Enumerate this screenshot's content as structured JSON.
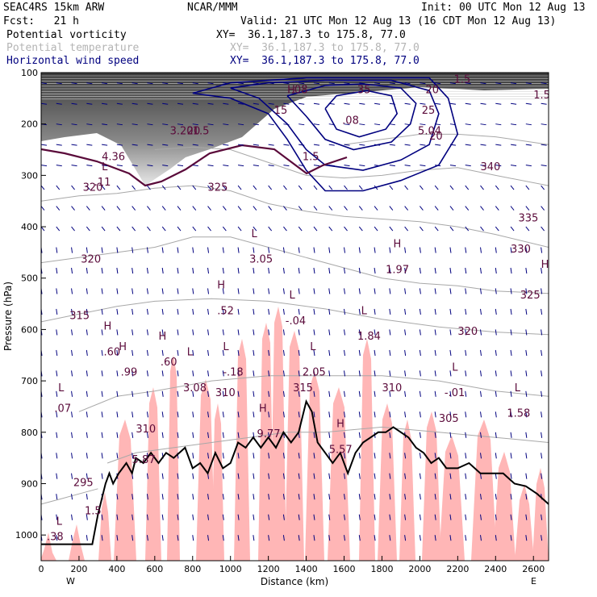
{
  "header": {
    "model": "SEAC4RS 15km ARW",
    "fcst": "Fcst:   21 h",
    "center": "NCAR/MMM",
    "init": "Init: 00 UTC Mon 12 Aug 13",
    "valid": "Valid: 21 UTC Mon 12 Aug 13 (16 CDT Mon 12 Aug 13)",
    "fields": [
      {
        "name": "Potential vorticity",
        "xy": "XY=  36.1,187.3 to 175.8, 77.0",
        "color": "#000000"
      },
      {
        "name": "Potential temperature",
        "xy": "XY=  36.1,187.3 to 175.8, 77.0",
        "color": "#b4b4b4"
      },
      {
        "name": "Horizontal wind speed",
        "xy": "XY=  36.1,187.3 to 175.8, 77.0",
        "color": "#00007f"
      }
    ]
  },
  "chart_data": {
    "type": "cross-section",
    "xlabel": "Distance (km)",
    "ylabel": "Pressure (hPa)",
    "xlim": [
      0,
      2680
    ],
    "ylim": [
      1050,
      100
    ],
    "x_ticks": [
      "0",
      "200",
      "400",
      "600",
      "800",
      "1000",
      "1200",
      "1400",
      "1600",
      "1800",
      "2000",
      "2200",
      "2400",
      "2600"
    ],
    "y_ticks": [
      "100",
      "200",
      "300",
      "400",
      "500",
      "600",
      "700",
      "800",
      "900",
      "1000"
    ],
    "end_labels": {
      "left": "W",
      "right": "E"
    },
    "colors": {
      "terrain": "#000000",
      "theta": "#a8a8a8",
      "wind": "#00007f",
      "pv_contour": "#5a0a3a",
      "rh_fill": "#ffb6b6"
    },
    "terrain": [
      [
        0,
        1018
      ],
      [
        120,
        1018
      ],
      [
        270,
        1018
      ],
      [
        300,
        960
      ],
      [
        340,
        900
      ],
      [
        360,
        880
      ],
      [
        380,
        900
      ],
      [
        410,
        880
      ],
      [
        450,
        860
      ],
      [
        480,
        880
      ],
      [
        500,
        850
      ],
      [
        540,
        860
      ],
      [
        580,
        840
      ],
      [
        620,
        860
      ],
      [
        660,
        840
      ],
      [
        700,
        850
      ],
      [
        760,
        830
      ],
      [
        800,
        870
      ],
      [
        840,
        860
      ],
      [
        880,
        880
      ],
      [
        920,
        840
      ],
      [
        960,
        870
      ],
      [
        1000,
        860
      ],
      [
        1040,
        820
      ],
      [
        1080,
        830
      ],
      [
        1120,
        810
      ],
      [
        1160,
        830
      ],
      [
        1200,
        810
      ],
      [
        1240,
        830
      ],
      [
        1280,
        800
      ],
      [
        1320,
        820
      ],
      [
        1360,
        800
      ],
      [
        1400,
        740
      ],
      [
        1430,
        760
      ],
      [
        1460,
        820
      ],
      [
        1500,
        840
      ],
      [
        1540,
        860
      ],
      [
        1580,
        840
      ],
      [
        1620,
        880
      ],
      [
        1660,
        840
      ],
      [
        1700,
        820
      ],
      [
        1740,
        810
      ],
      [
        1780,
        800
      ],
      [
        1820,
        800
      ],
      [
        1860,
        790
      ],
      [
        1900,
        800
      ],
      [
        1940,
        810
      ],
      [
        1980,
        830
      ],
      [
        2020,
        840
      ],
      [
        2060,
        860
      ],
      [
        2100,
        850
      ],
      [
        2140,
        870
      ],
      [
        2200,
        870
      ],
      [
        2260,
        860
      ],
      [
        2320,
        880
      ],
      [
        2380,
        880
      ],
      [
        2440,
        880
      ],
      [
        2500,
        900
      ],
      [
        2560,
        905
      ],
      [
        2620,
        920
      ],
      [
        2680,
        940
      ]
    ],
    "theta_contours": [
      {
        "level": "295",
        "pts": [
          [
            0,
            940
          ],
          [
            100,
            930
          ],
          [
            200,
            920
          ],
          [
            300,
            910
          ]
        ]
      },
      {
        "level": "305",
        "pts": [
          [
            350,
            860
          ],
          [
            500,
            840
          ],
          [
            700,
            830
          ],
          [
            900,
            820
          ],
          [
            1100,
            810
          ],
          [
            1300,
            800
          ],
          [
            1500,
            800
          ],
          [
            1800,
            790
          ],
          [
            2100,
            800
          ],
          [
            2400,
            810
          ],
          [
            2680,
            820
          ]
        ]
      },
      {
        "level": "310",
        "pts": [
          [
            200,
            760
          ],
          [
            400,
            730
          ],
          [
            600,
            720
          ],
          [
            900,
            700
          ],
          [
            1200,
            690
          ],
          [
            1500,
            690
          ],
          [
            1800,
            690
          ],
          [
            2100,
            700
          ],
          [
            2400,
            720
          ],
          [
            2680,
            730
          ]
        ]
      },
      {
        "level": "315",
        "pts": [
          [
            0,
            585
          ],
          [
            200,
            570
          ],
          [
            400,
            555
          ],
          [
            600,
            545
          ],
          [
            900,
            540
          ],
          [
            1200,
            545
          ],
          [
            1500,
            560
          ],
          [
            1800,
            580
          ],
          [
            2100,
            595
          ],
          [
            2400,
            605
          ],
          [
            2680,
            610
          ]
        ]
      },
      {
        "level": "320",
        "pts": [
          [
            0,
            470
          ],
          [
            200,
            460
          ],
          [
            400,
            450
          ],
          [
            600,
            440
          ],
          [
            800,
            420
          ],
          [
            1000,
            420
          ],
          [
            1200,
            440
          ],
          [
            1400,
            460
          ],
          [
            1600,
            480
          ],
          [
            1800,
            500
          ],
          [
            2000,
            510
          ],
          [
            2200,
            515
          ],
          [
            2400,
            525
          ],
          [
            2680,
            530
          ]
        ]
      },
      {
        "level": "325",
        "pts": [
          [
            0,
            350
          ],
          [
            200,
            340
          ],
          [
            400,
            335
          ],
          [
            600,
            325
          ],
          [
            800,
            320
          ],
          [
            1000,
            330
          ],
          [
            1200,
            355
          ],
          [
            1400,
            370
          ],
          [
            1600,
            380
          ],
          [
            1800,
            385
          ],
          [
            2000,
            390
          ],
          [
            2200,
            400
          ],
          [
            2400,
            415
          ],
          [
            2680,
            440
          ]
        ]
      },
      {
        "level": "330",
        "pts": [
          [
            600,
            250
          ],
          [
            800,
            245
          ],
          [
            1000,
            250
          ],
          [
            1200,
            275
          ],
          [
            1400,
            300
          ],
          [
            1600,
            305
          ],
          [
            1800,
            300
          ],
          [
            2000,
            290
          ],
          [
            2200,
            285
          ],
          [
            2400,
            300
          ],
          [
            2680,
            320
          ]
        ]
      },
      {
        "level": "340",
        "pts": [
          [
            1600,
            240
          ],
          [
            1800,
            230
          ],
          [
            2000,
            220
          ],
          [
            2200,
            220
          ],
          [
            2400,
            225
          ],
          [
            2680,
            240
          ]
        ]
      }
    ],
    "wind_isotachs": [
      {
        "level": "15",
        "pts": [
          [
            800,
            140
          ],
          [
            1000,
            150
          ],
          [
            1200,
            180
          ],
          [
            1300,
            230
          ],
          [
            1400,
            290
          ],
          [
            1500,
            330
          ],
          [
            1700,
            330
          ],
          [
            1900,
            310
          ],
          [
            2100,
            280
          ],
          [
            2200,
            220
          ],
          [
            2150,
            150
          ],
          [
            2050,
            110
          ],
          [
            1800,
            110
          ],
          [
            1400,
            110
          ],
          [
            1000,
            120
          ],
          [
            800,
            140
          ]
        ]
      },
      {
        "level": "20",
        "pts": [
          [
            1000,
            130
          ],
          [
            1150,
            150
          ],
          [
            1300,
            200
          ],
          [
            1400,
            250
          ],
          [
            1500,
            280
          ],
          [
            1700,
            290
          ],
          [
            1900,
            270
          ],
          [
            2050,
            240
          ],
          [
            2100,
            180
          ],
          [
            2050,
            135
          ],
          [
            1850,
            115
          ],
          [
            1500,
            115
          ],
          [
            1200,
            120
          ],
          [
            1000,
            130
          ]
        ]
      },
      {
        "level": "25",
        "pts": [
          [
            1300,
            145
          ],
          [
            1400,
            185
          ],
          [
            1500,
            230
          ],
          [
            1650,
            250
          ],
          [
            1850,
            235
          ],
          [
            1950,
            200
          ],
          [
            1980,
            160
          ],
          [
            1900,
            130
          ],
          [
            1700,
            122
          ],
          [
            1500,
            125
          ],
          [
            1300,
            145
          ]
        ]
      },
      {
        "level": "30",
        "pts": [
          [
            1500,
            170
          ],
          [
            1560,
            210
          ],
          [
            1680,
            225
          ],
          [
            1820,
            210
          ],
          [
            1880,
            180
          ],
          [
            1850,
            145
          ],
          [
            1720,
            135
          ],
          [
            1560,
            145
          ],
          [
            1500,
            170
          ]
        ]
      }
    ],
    "labels": [
      {
        "text": "L",
        "x": 80,
        "y": 980
      },
      {
        "text": ".38",
        "x": 30,
        "y": 1010
      },
      {
        "text": "L",
        "x": 90,
        "y": 720
      },
      {
        "text": ".07",
        "x": 70,
        "y": 760
      },
      {
        "text": "H",
        "x": 330,
        "y": 600
      },
      {
        "text": ".60",
        "x": 330,
        "y": 650
      },
      {
        "text": "H",
        "x": 620,
        "y": 620
      },
      {
        "text": ".60",
        "x": 630,
        "y": 670
      },
      {
        "text": "H",
        "x": 410,
        "y": 640
      },
      {
        "text": ".99",
        "x": 420,
        "y": 690
      },
      {
        "text": "L",
        "x": 770,
        "y": 650
      },
      {
        "text": "3.08",
        "x": 750,
        "y": 720
      },
      {
        "text": "L",
        "x": 960,
        "y": 640
      },
      {
        "text": "-.18",
        "x": 960,
        "y": 690
      },
      {
        "text": "H",
        "x": 930,
        "y": 520
      },
      {
        "text": ".52",
        "x": 930,
        "y": 570
      },
      {
        "text": "L",
        "x": 1110,
        "y": 420
      },
      {
        "text": "3.05",
        "x": 1100,
        "y": 470
      },
      {
        "text": "H",
        "x": 1150,
        "y": 760
      },
      {
        "text": "9.77",
        "x": 1140,
        "y": 810
      },
      {
        "text": "L",
        "x": 1310,
        "y": 540
      },
      {
        "text": "-.04",
        "x": 1290,
        "y": 590
      },
      {
        "text": "L",
        "x": 1420,
        "y": 640
      },
      {
        "text": "2.05",
        "x": 1380,
        "y": 690
      },
      {
        "text": "H",
        "x": 1560,
        "y": 790
      },
      {
        "text": "5.57",
        "x": 1520,
        "y": 840
      },
      {
        "text": "L",
        "x": 1690,
        "y": 570
      },
      {
        "text": "1.84",
        "x": 1670,
        "y": 620
      },
      {
        "text": "H",
        "x": 1860,
        "y": 440
      },
      {
        "text": "1.97",
        "x": 1820,
        "y": 490
      },
      {
        "text": "L",
        "x": 2170,
        "y": 680
      },
      {
        "text": "-.01",
        "x": 2130,
        "y": 730
      },
      {
        "text": "L",
        "x": 2500,
        "y": 720
      },
      {
        "text": "1.58",
        "x": 2460,
        "y": 770
      },
      {
        "text": "H",
        "x": 2640,
        "y": 480
      },
      {
        "text": "L",
        "x": 320,
        "y": 290
      },
      {
        "text": ".11",
        "x": 280,
        "y": 320
      },
      {
        "text": "4.36",
        "x": 320,
        "y": 270
      },
      {
        "text": "1.5",
        "x": 800,
        "y": 220
      },
      {
        "text": "1.5",
        "x": 2600,
        "y": 150
      },
      {
        "text": "1.5",
        "x": 230,
        "y": 960
      },
      {
        "text": "1.5",
        "x": 1380,
        "y": 270
      },
      {
        "text": "H",
        "x": 1300,
        "y": 140
      },
      {
        "text": ".08",
        "x": 1320,
        "y": 140
      },
      {
        "text": ".08",
        "x": 1590,
        "y": 200
      },
      {
        "text": "5.04",
        "x": 1990,
        "y": 220
      },
      {
        "text": "3.20",
        "x": 680,
        "y": 220
      },
      {
        "text": "5.87",
        "x": 480,
        "y": 860
      },
      {
        "text": "15",
        "x": 1230,
        "y": 180
      },
      {
        "text": "20",
        "x": 770,
        "y": 220
      },
      {
        "text": "20",
        "x": 2050,
        "y": 230
      },
      {
        "text": "25",
        "x": 2010,
        "y": 180
      },
      {
        "text": "20",
        "x": 2030,
        "y": 140
      },
      {
        "text": "35",
        "x": 1670,
        "y": 140
      },
      {
        "text": "1.5",
        "x": 2180,
        "y": 120
      },
      {
        "text": "320",
        "x": 210,
        "y": 470
      },
      {
        "text": "325",
        "x": 880,
        "y": 330
      },
      {
        "text": "320",
        "x": 220,
        "y": 330
      },
      {
        "text": "315",
        "x": 150,
        "y": 580
      },
      {
        "text": "320",
        "x": 2200,
        "y": 610
      },
      {
        "text": "330",
        "x": 2480,
        "y": 450
      },
      {
        "text": "335",
        "x": 2520,
        "y": 390
      },
      {
        "text": "325",
        "x": 2530,
        "y": 540
      },
      {
        "text": "340",
        "x": 2320,
        "y": 290
      },
      {
        "text": "295",
        "x": 170,
        "y": 905
      },
      {
        "text": "305",
        "x": 2100,
        "y": 780
      },
      {
        "text": "310",
        "x": 1800,
        "y": 720
      },
      {
        "text": "310",
        "x": 500,
        "y": 800
      },
      {
        "text": "310",
        "x": 920,
        "y": 730
      },
      {
        "text": "315",
        "x": 1330,
        "y": 720
      }
    ]
  }
}
